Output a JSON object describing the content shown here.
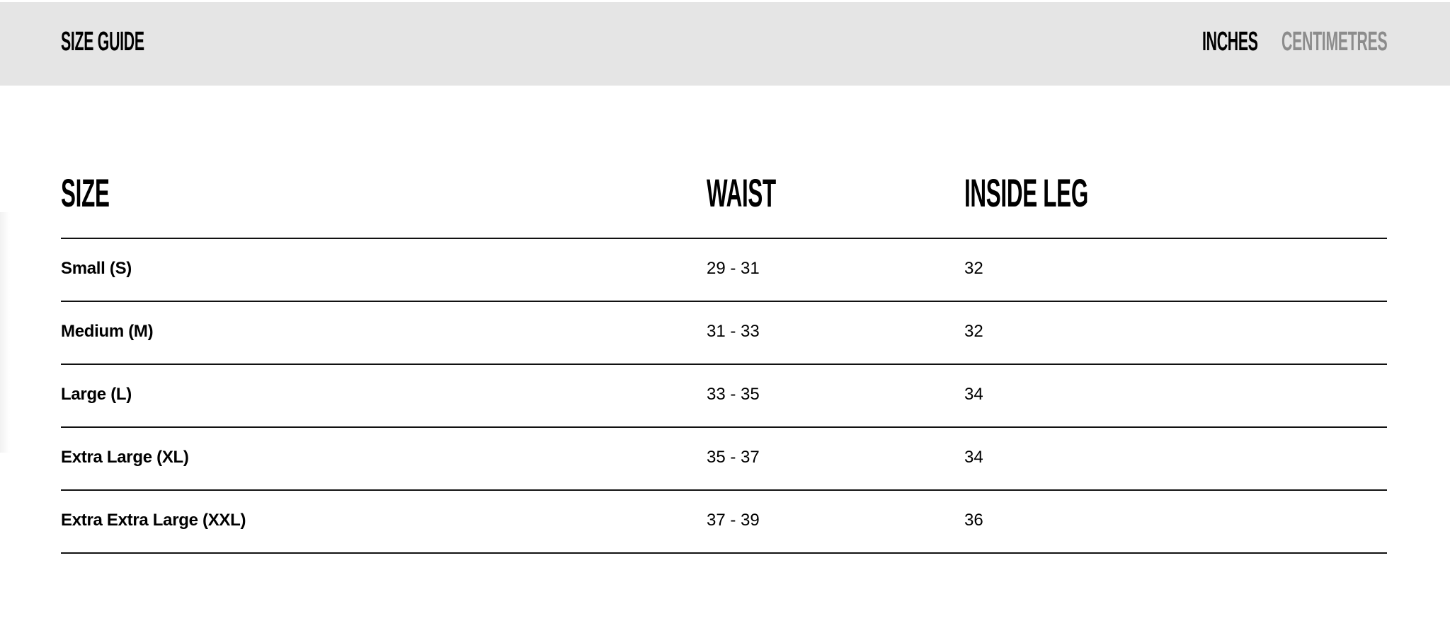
{
  "header": {
    "title": "SIZE GUIDE",
    "units": [
      {
        "label": "INCHES",
        "active": true
      },
      {
        "label": "CENTIMETRES",
        "active": false
      }
    ]
  },
  "colors": {
    "active_unit": "#000000",
    "inactive_unit": "#8c8c8c",
    "header_bg": "#e5e5e5"
  },
  "table": {
    "columns": [
      "SIZE",
      "WAIST",
      "INSIDE LEG"
    ],
    "rows": [
      {
        "size": "Small (S)",
        "waist": "29 - 31",
        "inside_leg": "32"
      },
      {
        "size": "Medium (M)",
        "waist": "31 - 33",
        "inside_leg": "32"
      },
      {
        "size": "Large (L)",
        "waist": "33 - 35",
        "inside_leg": "34"
      },
      {
        "size": "Extra Large (XL)",
        "waist": "35 - 37",
        "inside_leg": "34"
      },
      {
        "size": "Extra Extra Large (XXL)",
        "waist": "37 - 39",
        "inside_leg": "36"
      }
    ]
  }
}
